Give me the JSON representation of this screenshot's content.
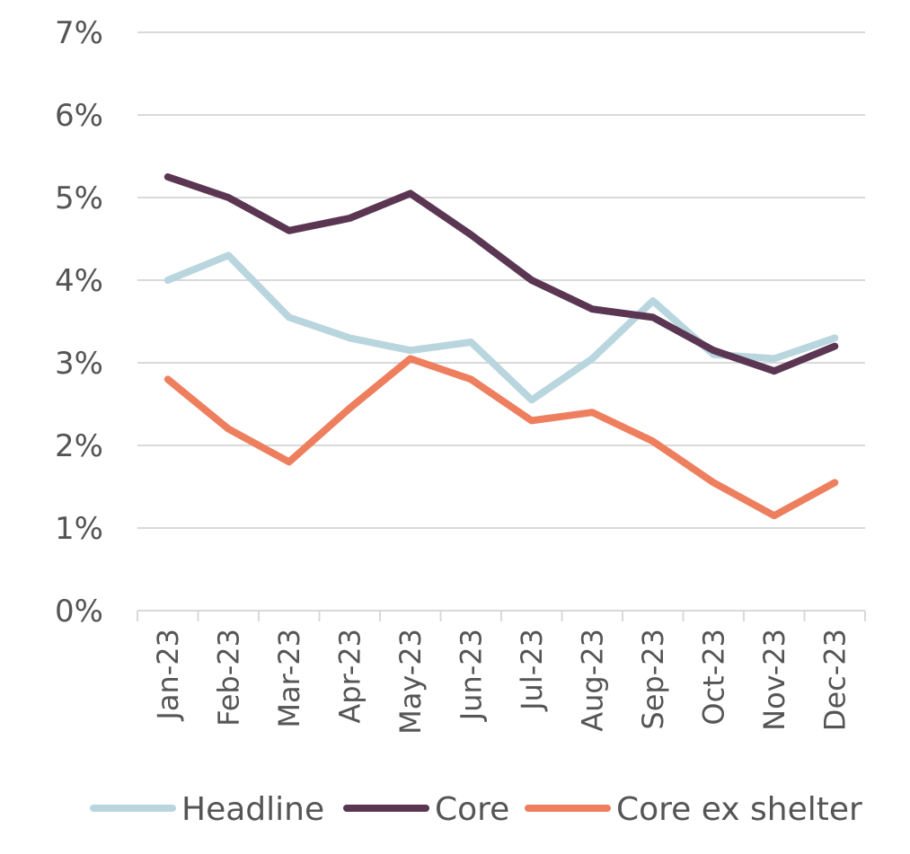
{
  "chart_data": {
    "type": "line",
    "title": "",
    "xlabel": "",
    "ylabel": "",
    "categories": [
      "Jan-23",
      "Feb-23",
      "Mar-23",
      "Apr-23",
      "May-23",
      "Jun-23",
      "Jul-23",
      "Aug-23",
      "Sep-23",
      "Oct-23",
      "Nov-23",
      "Dec-23"
    ],
    "y_ticks": [
      "0%",
      "1%",
      "2%",
      "3%",
      "4%",
      "5%",
      "6%",
      "7%"
    ],
    "ylim": [
      0,
      7
    ],
    "grid": true,
    "legend_position": "bottom",
    "series": [
      {
        "name": "Headline",
        "color": "#b9d6df",
        "values": [
          4.0,
          4.3,
          3.55,
          3.3,
          3.15,
          3.25,
          2.55,
          3.05,
          3.75,
          3.1,
          3.05,
          3.3
        ]
      },
      {
        "name": "Core",
        "color": "#5b3652",
        "values": [
          5.25,
          5.0,
          4.6,
          4.75,
          5.05,
          4.55,
          4.0,
          3.65,
          3.55,
          3.15,
          2.9,
          3.2
        ]
      },
      {
        "name": "Core ex shelter",
        "color": "#ee7f5e",
        "values": [
          2.8,
          2.2,
          1.8,
          2.45,
          3.05,
          2.8,
          2.3,
          2.4,
          2.05,
          1.55,
          1.15,
          1.55
        ]
      }
    ]
  }
}
